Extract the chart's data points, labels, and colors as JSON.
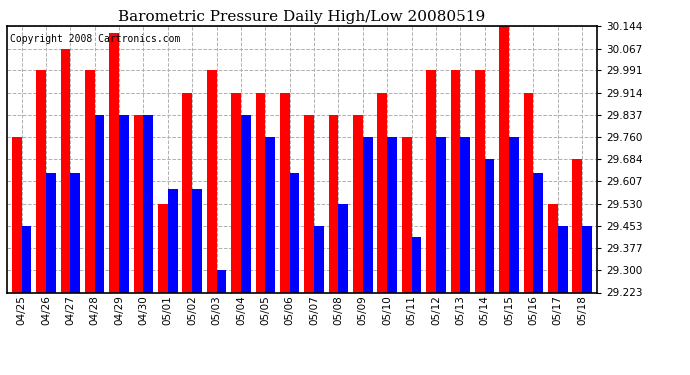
{
  "title": "Barometric Pressure Daily High/Low 20080519",
  "copyright": "Copyright 2008 Cartronics.com",
  "categories": [
    "04/25",
    "04/26",
    "04/27",
    "04/28",
    "04/29",
    "04/30",
    "05/01",
    "05/02",
    "05/03",
    "05/04",
    "05/05",
    "05/06",
    "05/07",
    "05/08",
    "05/09",
    "05/10",
    "05/11",
    "05/12",
    "05/13",
    "05/14",
    "05/15",
    "05/16",
    "05/17",
    "05/18"
  ],
  "highs": [
    29.76,
    29.991,
    30.067,
    29.991,
    30.121,
    29.837,
    29.53,
    29.914,
    29.991,
    29.914,
    29.914,
    29.914,
    29.837,
    29.837,
    29.837,
    29.914,
    29.76,
    29.991,
    29.991,
    29.991,
    30.144,
    29.914,
    29.53,
    29.684
  ],
  "lows": [
    29.453,
    29.637,
    29.637,
    29.837,
    29.837,
    29.837,
    29.58,
    29.58,
    29.3,
    29.837,
    29.76,
    29.637,
    29.453,
    29.53,
    29.76,
    29.76,
    29.414,
    29.76,
    29.76,
    29.684,
    29.76,
    29.637,
    29.453,
    29.453
  ],
  "ylim_min": 29.223,
  "ylim_max": 30.144,
  "yticks": [
    29.223,
    29.3,
    29.377,
    29.453,
    29.53,
    29.607,
    29.684,
    29.76,
    29.837,
    29.914,
    29.991,
    30.067,
    30.144
  ],
  "bar_width": 0.4,
  "high_color": "#ff0000",
  "low_color": "#0000ff",
  "bg_color": "#ffffff",
  "grid_color": "#b0b0b0",
  "title_fontsize": 11,
  "copyright_fontsize": 7,
  "tick_fontsize": 7.5
}
